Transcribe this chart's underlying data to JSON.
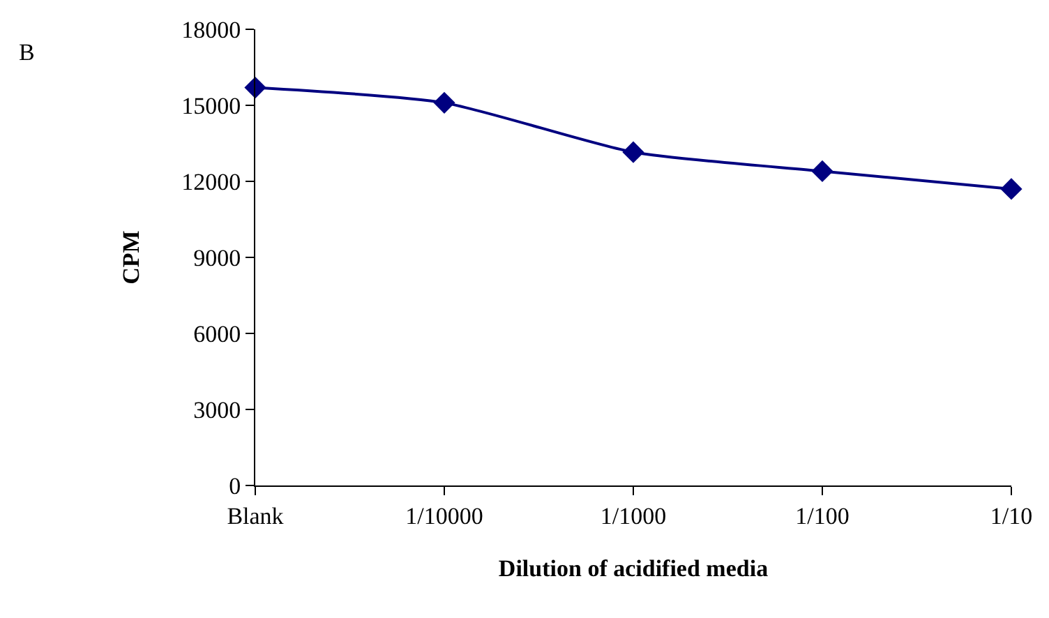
{
  "chart_data": {
    "type": "line",
    "title": "B",
    "xlabel": "Dilution of acidified media",
    "ylabel": "CPM",
    "categories": [
      "Blank",
      "1/10000",
      "1/1000",
      "1/100",
      "1/10"
    ],
    "series": [
      {
        "color": "#000080",
        "values": [
          15700,
          15100,
          13150,
          12400,
          11700
        ]
      }
    ],
    "ylim": [
      0,
      18000
    ],
    "yticks": [
      0,
      3000,
      6000,
      9000,
      12000,
      15000,
      18000
    ],
    "grid": false,
    "legend": false,
    "marker": "diamond",
    "line_style": "solid"
  }
}
